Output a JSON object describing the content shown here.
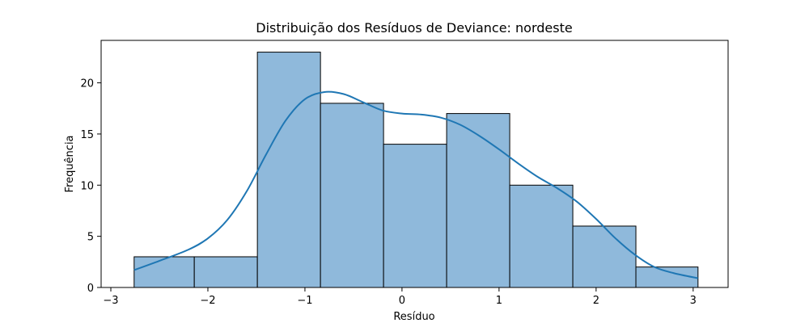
{
  "chart_data": {
    "type": "bar",
    "subtype": "histogram_with_kde",
    "title": "Distribuição dos Resíduos de Deviance: nordeste",
    "xlabel": "Resíduo",
    "ylabel": "Frequência",
    "xlim": [
      -3.1,
      3.36
    ],
    "ylim": [
      0,
      24.15
    ],
    "xticks": [
      -3,
      -2,
      -1,
      0,
      1,
      2,
      3
    ],
    "yticks": [
      0,
      5,
      10,
      15,
      20
    ],
    "bins": [
      {
        "x0": -2.76,
        "x1": -2.14,
        "count": 3
      },
      {
        "x0": -2.14,
        "x1": -1.49,
        "count": 3
      },
      {
        "x0": -1.49,
        "x1": -0.84,
        "count": 23
      },
      {
        "x0": -0.84,
        "x1": -0.19,
        "count": 18
      },
      {
        "x0": -0.19,
        "x1": 0.46,
        "count": 14
      },
      {
        "x0": 0.46,
        "x1": 1.11,
        "count": 17
      },
      {
        "x0": 1.11,
        "x1": 1.76,
        "count": 10
      },
      {
        "x0": 1.76,
        "x1": 2.41,
        "count": 6
      },
      {
        "x0": 2.41,
        "x1": 3.05,
        "count": 2
      }
    ],
    "kde": {
      "x": [
        -2.76,
        -2.5,
        -2.2,
        -2.0,
        -1.8,
        -1.6,
        -1.4,
        -1.2,
        -1.0,
        -0.8,
        -0.6,
        -0.4,
        -0.2,
        0.0,
        0.2,
        0.4,
        0.6,
        0.8,
        1.0,
        1.2,
        1.4,
        1.6,
        1.8,
        2.0,
        2.2,
        2.4,
        2.6,
        2.8,
        3.05
      ],
      "y": [
        1.7,
        2.6,
        3.7,
        4.8,
        6.6,
        9.4,
        13.0,
        16.3,
        18.4,
        19.1,
        18.9,
        18.1,
        17.3,
        17.0,
        16.9,
        16.6,
        15.9,
        14.8,
        13.5,
        12.1,
        10.8,
        9.7,
        8.4,
        6.7,
        4.8,
        3.2,
        2.0,
        1.4,
        0.9
      ]
    },
    "bar_color": "#8fb9db",
    "line_color": "#1f77b4",
    "grid": false,
    "legend": "none"
  }
}
